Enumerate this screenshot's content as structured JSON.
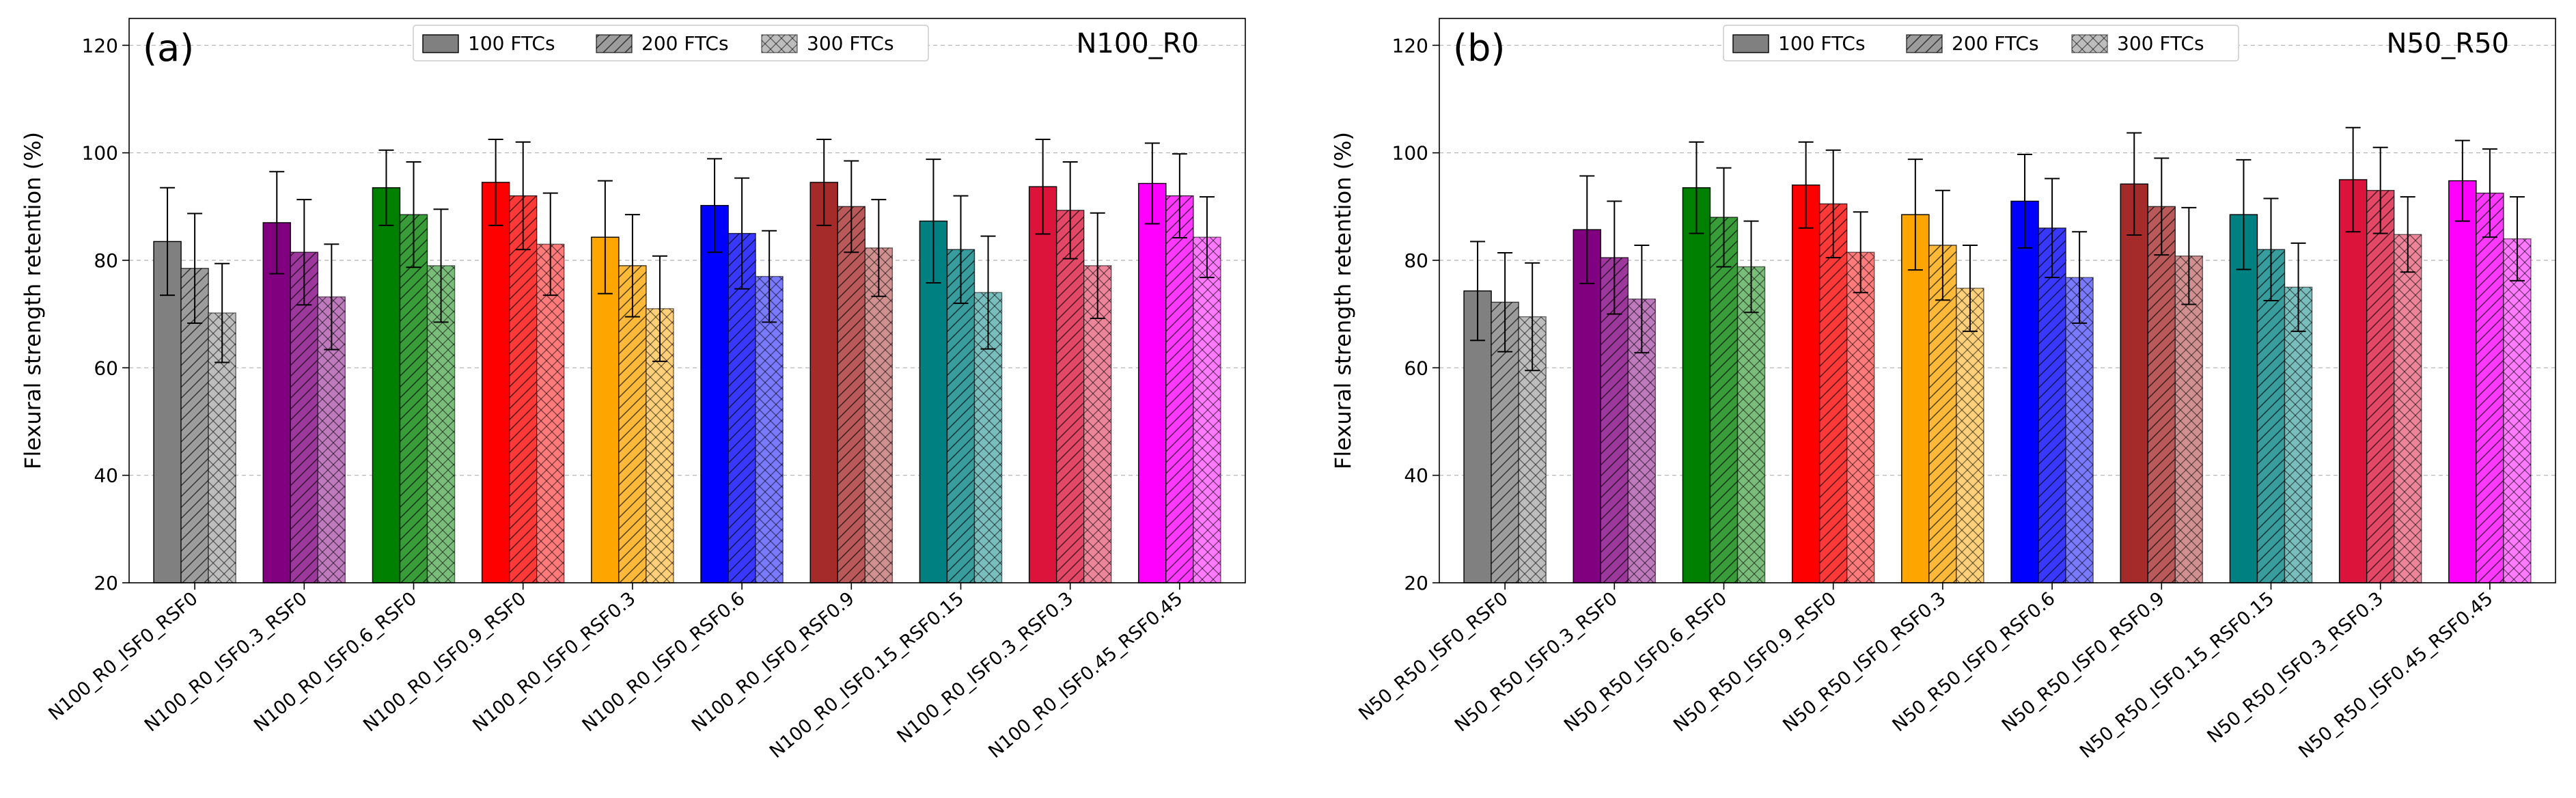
{
  "figure": {
    "legend_position": "upper-center",
    "series_names": [
      "100 FTCs",
      "200 FTCs",
      "300 FTCs"
    ],
    "series_patterns": [
      "solid",
      "diagonal-hatch",
      "cross-hatch"
    ]
  },
  "chart_data": [
    {
      "type": "bar",
      "panel_label": "(a)",
      "title": "N100_R0",
      "xlabel": "",
      "ylabel": "Flexural strength retention (%)",
      "ylim": [
        20,
        125
      ],
      "yticks": [
        20,
        40,
        60,
        80,
        100,
        120
      ],
      "grid": "y-dashed",
      "legend": "top-center",
      "categories": [
        "N100_R0_ISF0_RSF0",
        "N100_R0_ISF0.3_RSF0",
        "N100_R0_ISF0.6_RSF0",
        "N100_R0_ISF0.9_RSF0",
        "N100_R0_ISF0_RSF0.3",
        "N100_R0_ISF0_RSF0.6",
        "N100_R0_ISF0_RSF0.9",
        "N100_R0_ISF0.15_RSF0.15",
        "N100_R0_ISF0.3_RSF0.3",
        "N100_R0_ISF0.45_RSF0.45"
      ],
      "colors": [
        "#808080",
        "#800080",
        "#008000",
        "#ff0000",
        "#ffa500",
        "#0000ff",
        "#a52a2a",
        "#008080",
        "#dc143c",
        "#ff00ff"
      ],
      "series": [
        {
          "name": "100 FTCs",
          "values": [
            83.5,
            87,
            93.5,
            94.5,
            84.3,
            90.2,
            94.5,
            87.3,
            93.7,
            94.3
          ],
          "errors": [
            10,
            9.5,
            7,
            8,
            10.5,
            8.7,
            8,
            11.5,
            8.8,
            7.5
          ]
        },
        {
          "name": "200 FTCs",
          "values": [
            78.5,
            81.5,
            88.5,
            92,
            79,
            85,
            90,
            82,
            89.3,
            92
          ],
          "errors": [
            10.2,
            9.8,
            9.8,
            10,
            9.5,
            10.3,
            8.5,
            10,
            9,
            7.8
          ]
        },
        {
          "name": "300 FTCs",
          "values": [
            70.2,
            73.2,
            79,
            83,
            71,
            77,
            82.3,
            74,
            79,
            84.3
          ],
          "errors": [
            9.2,
            9.8,
            10.5,
            9.5,
            9.8,
            8.5,
            9,
            10.5,
            9.8,
            7.5
          ]
        }
      ]
    },
    {
      "type": "bar",
      "panel_label": "(b)",
      "title": "N50_R50",
      "xlabel": "",
      "ylabel": "Flexural strength retention (%)",
      "ylim": [
        20,
        125
      ],
      "yticks": [
        20,
        40,
        60,
        80,
        100,
        120
      ],
      "grid": "y-dashed",
      "legend": "top-center",
      "categories": [
        "N50_R50_ISF0_RSF0",
        "N50_R50_ISF0.3_RSF0",
        "N50_R50_ISF0.6_RSF0",
        "N50_R50_ISF0.9_RSF0",
        "N50_R50_ISF0_RSF0.3",
        "N50_R50_ISF0_RSF0.6",
        "N50_R50_ISF0_RSF0.9",
        "N50_R50_ISF0.15_RSF0.15",
        "N50_R50_ISF0.3_RSF0.3",
        "N50_R50_ISF0.45_RSF0.45"
      ],
      "colors": [
        "#808080",
        "#800080",
        "#008000",
        "#ff0000",
        "#ffa500",
        "#0000ff",
        "#a52a2a",
        "#008080",
        "#dc143c",
        "#ff00ff"
      ],
      "series": [
        {
          "name": "100 FTCs",
          "values": [
            74.3,
            85.7,
            93.5,
            94,
            88.5,
            91,
            94.2,
            88.5,
            95,
            94.8
          ],
          "errors": [
            9.2,
            10,
            8.5,
            8,
            10.3,
            8.7,
            9.5,
            10.2,
            9.7,
            7.5
          ]
        },
        {
          "name": "200 FTCs",
          "values": [
            72.2,
            80.5,
            88,
            90.5,
            82.8,
            86,
            90,
            82,
            93,
            92.5
          ],
          "errors": [
            9.2,
            10.5,
            9.2,
            10,
            10.2,
            9.2,
            9,
            9.5,
            8,
            8.2
          ]
        },
        {
          "name": "300 FTCs",
          "values": [
            69.5,
            72.8,
            78.8,
            81.5,
            74.8,
            76.8,
            80.8,
            75,
            84.8,
            84
          ],
          "errors": [
            10,
            10,
            8.5,
            7.5,
            8,
            8.5,
            9,
            8.2,
            7,
            7.8
          ]
        }
      ]
    }
  ]
}
